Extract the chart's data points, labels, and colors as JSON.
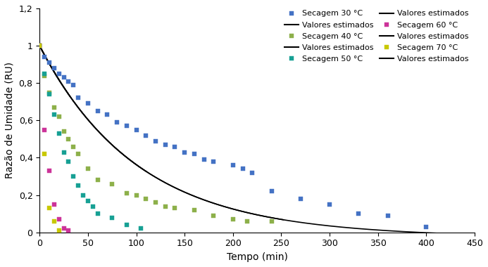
{
  "xlabel": "Tempo (min)",
  "ylabel": "Razão de Umidade (RU)",
  "xlim": [
    0,
    450
  ],
  "ylim": [
    0,
    1.2
  ],
  "xticks": [
    0,
    50,
    100,
    150,
    200,
    250,
    300,
    350,
    400,
    450
  ],
  "ytick_labels": [
    "0",
    "0,2",
    "0,4",
    "0,6",
    "0,8",
    "1",
    "1,2"
  ],
  "ytick_vals": [
    0.0,
    0.2,
    0.4,
    0.6,
    0.8,
    1.0,
    1.2
  ],
  "colors": {
    "30": "#4472C4",
    "40": "#8DB04A",
    "50": "#17A094",
    "60": "#CC3399",
    "70": "#C8C800"
  },
  "data_30_t": [
    0,
    5,
    10,
    15,
    20,
    25,
    30,
    35,
    40,
    50,
    60,
    70,
    80,
    90,
    100,
    110,
    120,
    130,
    140,
    150,
    160,
    170,
    180,
    200,
    210,
    220,
    240,
    270,
    300,
    330,
    360,
    400
  ],
  "data_30_RU": [
    1.0,
    0.94,
    0.91,
    0.88,
    0.85,
    0.83,
    0.81,
    0.79,
    0.72,
    0.69,
    0.65,
    0.63,
    0.59,
    0.57,
    0.55,
    0.52,
    0.49,
    0.47,
    0.46,
    0.43,
    0.42,
    0.39,
    0.38,
    0.36,
    0.34,
    0.32,
    0.22,
    0.18,
    0.15,
    0.1,
    0.09,
    0.03
  ],
  "data_40_t": [
    0,
    5,
    10,
    15,
    20,
    25,
    30,
    35,
    40,
    50,
    60,
    75,
    90,
    100,
    110,
    120,
    130,
    140,
    160,
    180,
    200,
    215,
    240
  ],
  "data_40_RU": [
    1.0,
    0.84,
    0.75,
    0.67,
    0.62,
    0.54,
    0.5,
    0.46,
    0.42,
    0.34,
    0.28,
    0.26,
    0.21,
    0.2,
    0.18,
    0.16,
    0.14,
    0.13,
    0.12,
    0.09,
    0.07,
    0.06,
    0.06
  ],
  "data_50_t": [
    0,
    5,
    10,
    15,
    20,
    25,
    30,
    35,
    40,
    45,
    50,
    55,
    60,
    75,
    90,
    105
  ],
  "data_50_RU": [
    1.0,
    0.85,
    0.74,
    0.63,
    0.53,
    0.43,
    0.38,
    0.3,
    0.25,
    0.2,
    0.17,
    0.14,
    0.1,
    0.08,
    0.04,
    0.02
  ],
  "data_60_t": [
    0,
    5,
    10,
    15,
    20,
    25,
    30
  ],
  "data_60_RU": [
    1.0,
    0.55,
    0.33,
    0.15,
    0.07,
    0.02,
    0.01
  ],
  "data_70_t": [
    0,
    5,
    10,
    15,
    20
  ],
  "data_70_RU": [
    1.0,
    0.42,
    0.13,
    0.06,
    0.01
  ],
  "legend_labels": [
    "Secagem 30 °C",
    "Secagem 40 °C",
    "Secagem 50 °C",
    "Secagem 60 °C",
    "Secagem 70 °C"
  ],
  "legend_line_label": "Valores estimados",
  "marker": "s",
  "markersize": 5,
  "fontsize_ticks": 9,
  "fontsize_axis": 10,
  "fontsize_legend": 8
}
